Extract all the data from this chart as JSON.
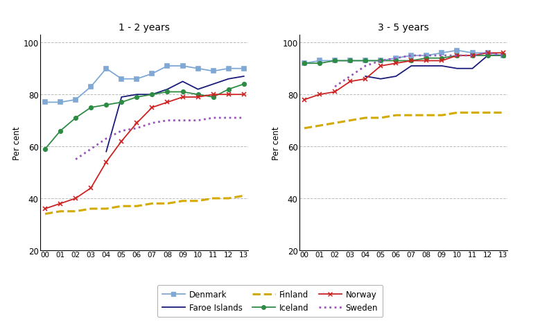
{
  "years": [
    0,
    1,
    2,
    3,
    4,
    5,
    6,
    7,
    8,
    9,
    10,
    11,
    12,
    13
  ],
  "title1": "1 - 2 years",
  "title2": "3 - 5 years",
  "ylabel": "Per cent",
  "ylim": [
    20,
    103
  ],
  "yticks": [
    20,
    40,
    60,
    80,
    100
  ],
  "panel1": {
    "Denmark": [
      77,
      77,
      78,
      83,
      90,
      86,
      86,
      88,
      91,
      91,
      90,
      89,
      90,
      90
    ],
    "Faroe_Islands": [
      null,
      null,
      null,
      null,
      58,
      79,
      80,
      80,
      82,
      85,
      82,
      84,
      86,
      87
    ],
    "Finland": [
      34,
      35,
      35,
      36,
      36,
      37,
      37,
      38,
      38,
      39,
      39,
      40,
      40,
      41
    ],
    "Iceland": [
      59,
      66,
      71,
      75,
      76,
      77,
      79,
      80,
      81,
      81,
      80,
      79,
      82,
      84
    ],
    "Norway": [
      36,
      38,
      40,
      44,
      54,
      62,
      69,
      75,
      77,
      79,
      79,
      80,
      80,
      80
    ],
    "Sweden": [
      null,
      null,
      55,
      59,
      63,
      66,
      67,
      69,
      70,
      70,
      70,
      71,
      71,
      71
    ]
  },
  "panel2": {
    "Denmark": [
      92,
      93,
      93,
      93,
      93,
      93,
      94,
      95,
      95,
      96,
      97,
      96,
      96,
      95
    ],
    "Faroe_Islands": [
      null,
      null,
      null,
      null,
      87,
      86,
      87,
      91,
      91,
      91,
      90,
      90,
      95,
      95
    ],
    "Finland": [
      67,
      68,
      69,
      70,
      71,
      71,
      72,
      72,
      72,
      72,
      73,
      73,
      73,
      73
    ],
    "Iceland": [
      92,
      92,
      93,
      93,
      93,
      93,
      93,
      93,
      94,
      94,
      95,
      95,
      95,
      95
    ],
    "Norway": [
      78,
      80,
      81,
      85,
      86,
      91,
      92,
      93,
      93,
      93,
      95,
      95,
      96,
      96
    ],
    "Sweden": [
      null,
      null,
      83,
      87,
      91,
      93,
      94,
      95,
      95,
      95,
      95,
      95,
      96,
      95
    ]
  },
  "colors": {
    "Denmark": "#7fa8d5",
    "Faroe_Islands": "#1a1a7a",
    "Finland": "#d4aa00",
    "Iceland": "#2e8b44",
    "Norway": "#cc2222",
    "Sweden": "#9955bb"
  },
  "linewidths": {
    "Denmark": 1.3,
    "Faroe_Islands": 1.3,
    "Finland": 2.2,
    "Iceland": 1.3,
    "Norway": 1.3,
    "Sweden": 2.0
  },
  "legend_order": [
    "Denmark",
    "Faroe_Islands",
    "Finland",
    "Iceland",
    "Norway",
    "Sweden"
  ],
  "legend_labels": [
    "Denmark",
    "Faroe Islands",
    "Finland",
    "Iceland",
    "Norway",
    "Sweden"
  ]
}
